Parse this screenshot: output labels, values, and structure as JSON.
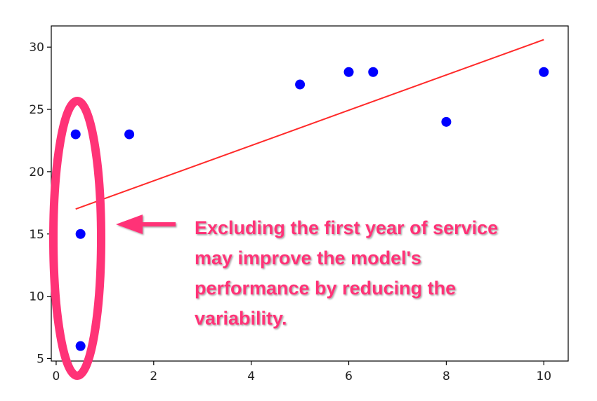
{
  "chart_data": {
    "type": "scatter",
    "title": "",
    "xlabel": "",
    "ylabel": "",
    "xlim": [
      -0.1,
      10.5
    ],
    "ylim": [
      4.8,
      31.7
    ],
    "x_ticks": [
      0,
      2,
      4,
      6,
      8,
      10
    ],
    "y_ticks": [
      5,
      10,
      15,
      20,
      25,
      30
    ],
    "grid": false,
    "points": [
      {
        "x": 0.4,
        "y": 23
      },
      {
        "x": 0.5,
        "y": 15
      },
      {
        "x": 0.5,
        "y": 6
      },
      {
        "x": 1.5,
        "y": 23
      },
      {
        "x": 5,
        "y": 27
      },
      {
        "x": 6,
        "y": 28
      },
      {
        "x": 6.5,
        "y": 28
      },
      {
        "x": 8,
        "y": 24
      },
      {
        "x": 10,
        "y": 28
      }
    ],
    "point_color": "#0000ff",
    "trend_line": {
      "x": [
        0.4,
        10
      ],
      "y": [
        17,
        30.6
      ],
      "color": "#ff2a2a"
    },
    "highlight_color": "#ff3377",
    "annotation": {
      "lines": [
        "Excluding the first year of service",
        "may improve the model's",
        "performance by reducing the",
        "variability."
      ]
    }
  }
}
